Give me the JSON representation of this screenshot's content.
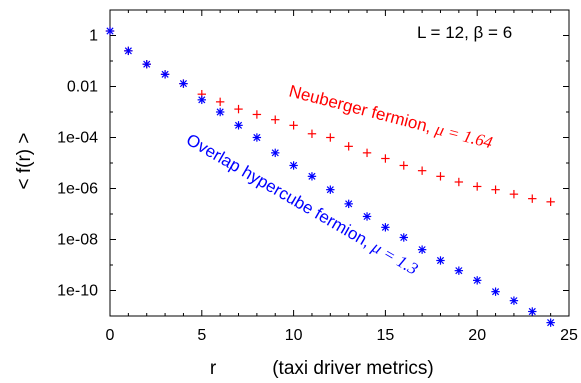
{
  "chart_data": {
    "type": "scatter",
    "xlabel": "r",
    "xlabel_note": "(taxi driver metrics)",
    "ylabel": "< f(r) >",
    "legend_text": "L = 12,  β  = 6",
    "x_ticks": [
      "0",
      "5",
      "10",
      "15",
      "20",
      "25"
    ],
    "y_ticks": [
      "1",
      "0.01",
      "1e-04",
      "1e-06",
      "1e-08",
      "1e-10"
    ],
    "y_tick_values": [
      1,
      0.01,
      0.0001,
      1e-06,
      1e-08,
      1e-10
    ],
    "x_tick_values": [
      0,
      5,
      10,
      15,
      20,
      25
    ],
    "xlim": [
      0,
      25
    ],
    "ylim": [
      1e-11,
      10
    ],
    "y_scale": "log",
    "series": [
      {
        "name": "Neuberger fermion, μ = 1.64",
        "annotation_prefix": "Neuberger fermion, ",
        "annotation_mu": "μ = 1.64",
        "color": "#ff0000",
        "marker": "plus",
        "x": [
          0,
          1,
          2,
          3,
          4,
          5,
          6,
          7,
          8,
          9,
          10,
          11,
          12,
          13,
          14,
          15,
          16,
          17,
          18,
          19,
          20,
          21,
          22,
          23,
          24
        ],
        "y": [
          1.5,
          0.25,
          0.075,
          0.03,
          0.013,
          0.005,
          0.0025,
          0.0013,
          0.0008,
          0.0005,
          0.0003,
          0.00014,
          0.0001,
          4.5e-05,
          2.5e-05,
          1.5e-05,
          8e-06,
          5e-06,
          3e-06,
          1.8e-06,
          1.2e-06,
          9e-07,
          6e-07,
          4e-07,
          3e-07
        ]
      },
      {
        "name": "Overlap hypercube fermion, μ = 1.3",
        "annotation_prefix": "Overlap hypercube fermion, ",
        "annotation_mu": "μ = 1.3",
        "color": "#0000ff",
        "marker": "star",
        "x": [
          0,
          1,
          2,
          3,
          4,
          5,
          6,
          7,
          8,
          9,
          10,
          11,
          12,
          13,
          14,
          15,
          16,
          17,
          18,
          19,
          20,
          21,
          22,
          23,
          24
        ],
        "y": [
          1.5,
          0.25,
          0.075,
          0.03,
          0.013,
          0.003,
          0.001,
          0.0003,
          0.0001,
          2.5e-05,
          8e-06,
          3e-06,
          9e-07,
          2.5e-07,
          8e-08,
          3e-08,
          1.2e-08,
          4e-09,
          1.5e-09,
          6e-10,
          2.5e-10,
          9e-11,
          4e-11,
          1.5e-11,
          5.5e-12
        ]
      }
    ]
  }
}
